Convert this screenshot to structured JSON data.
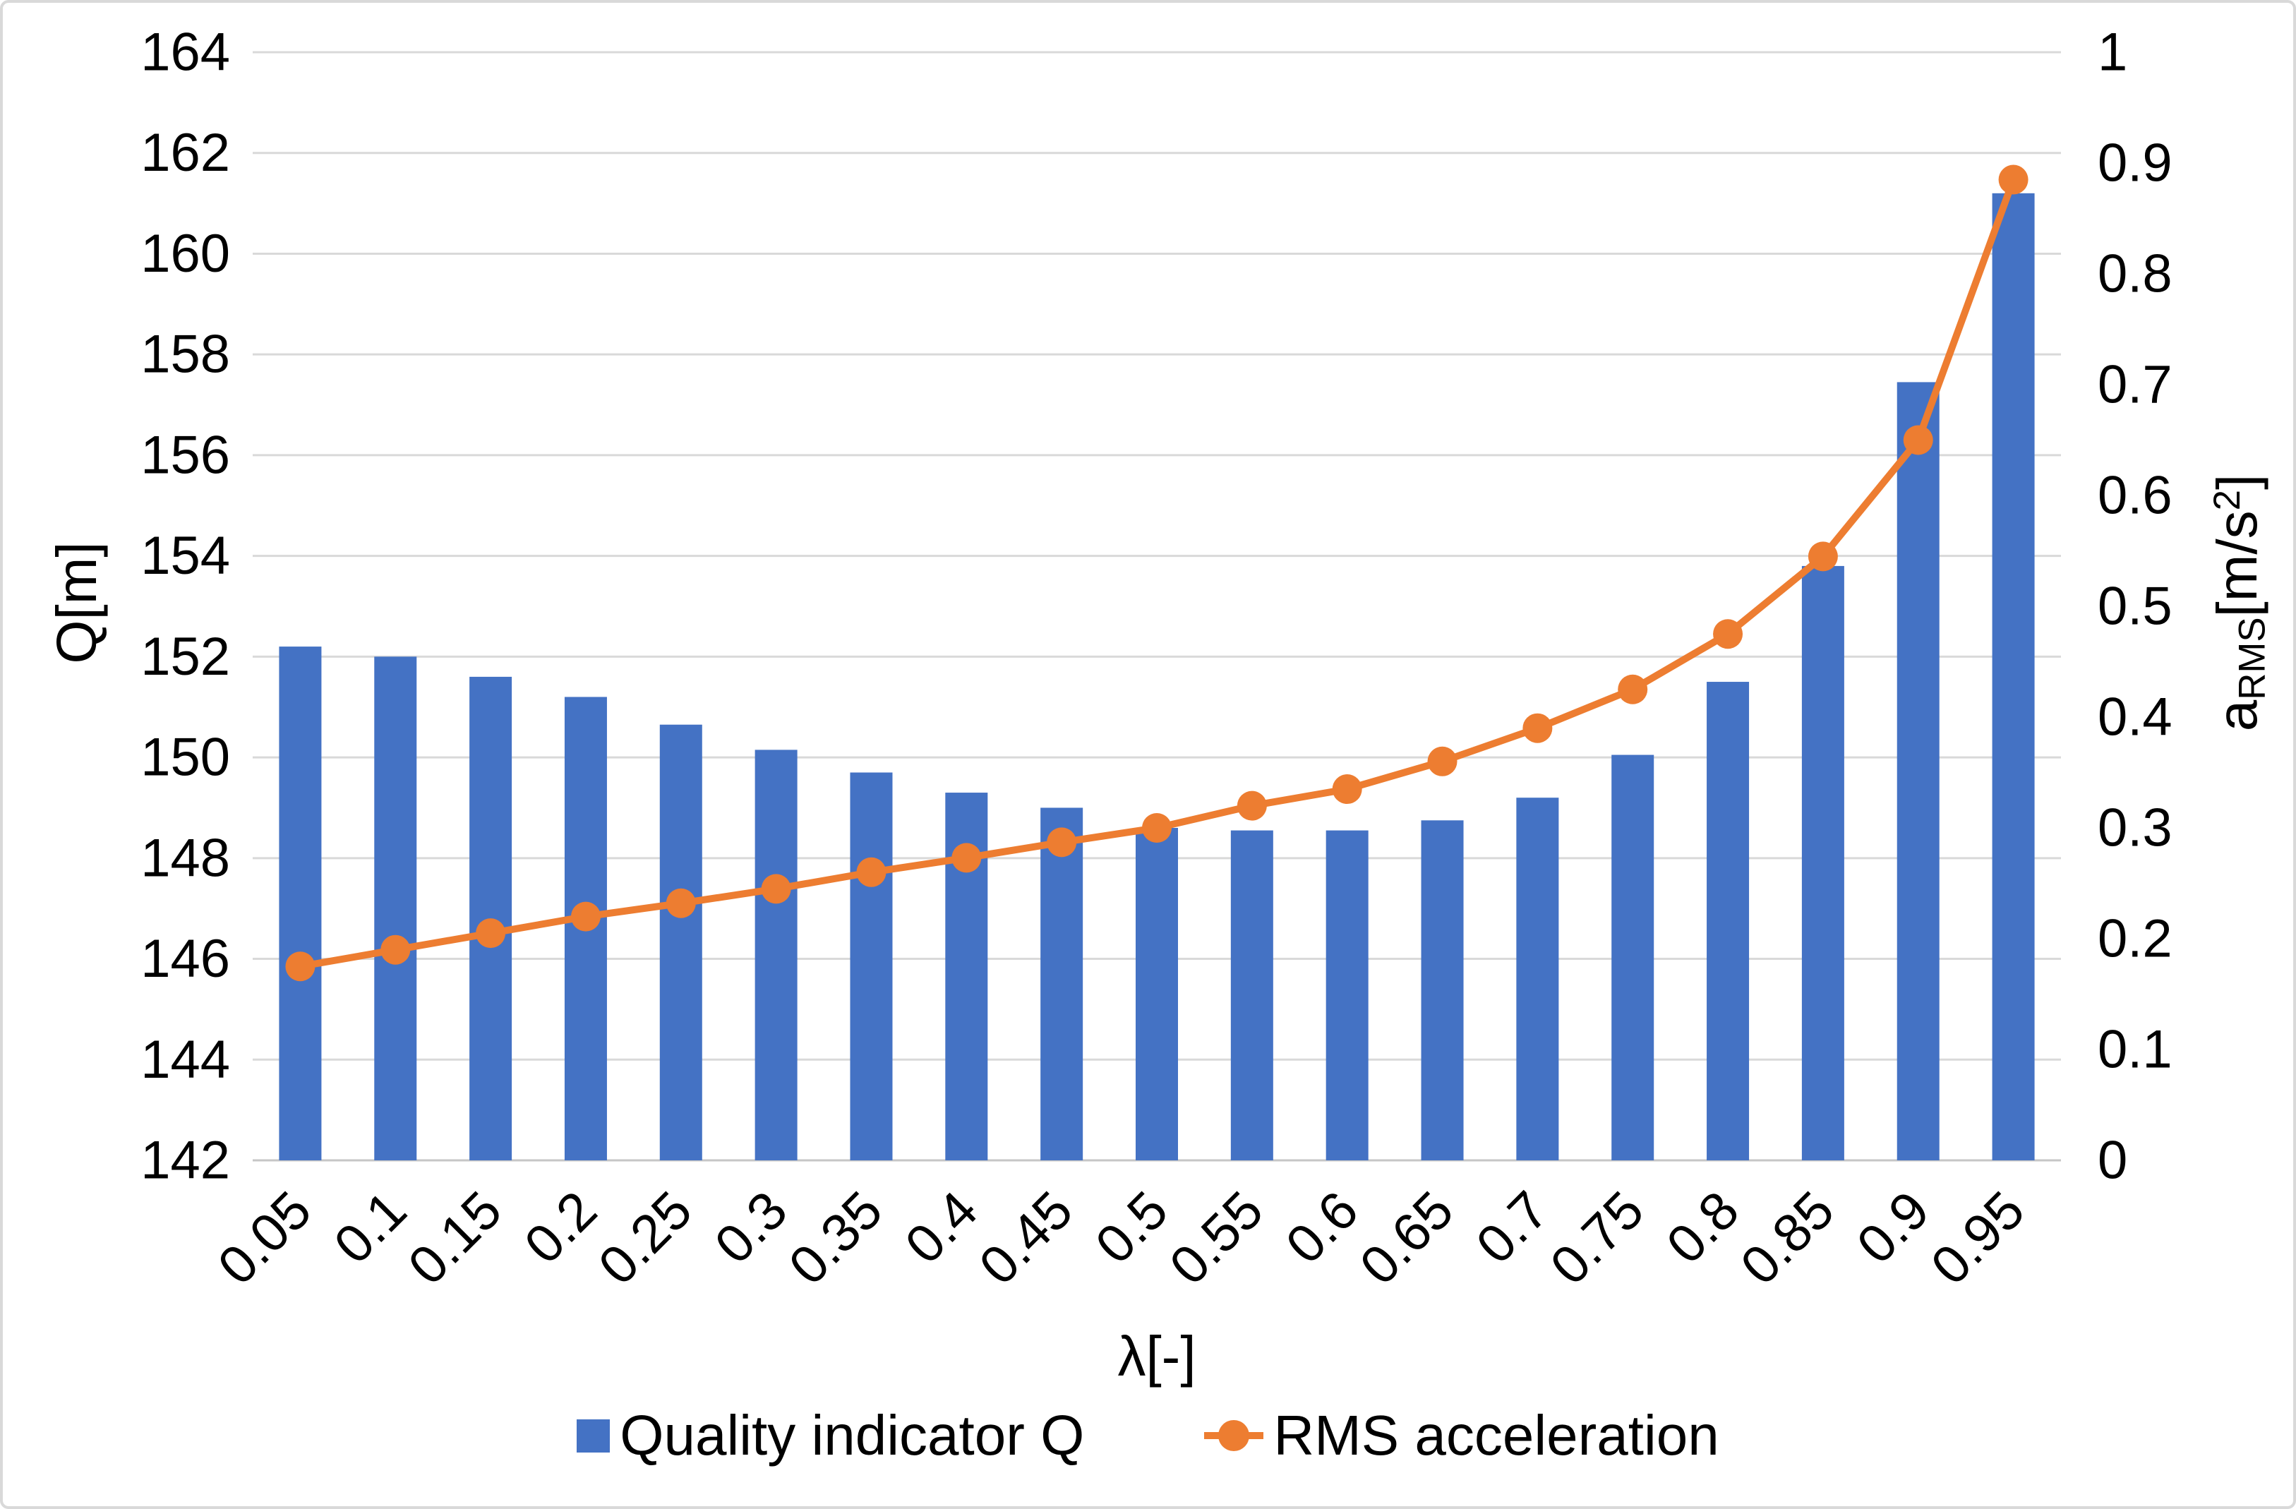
{
  "chart_data": {
    "type": "bar",
    "subtype": "combo-bar-line-dual-axis",
    "categories": [
      "0.05",
      "0.1",
      "0.15",
      "0.2",
      "0.25",
      "0.3",
      "0.35",
      "0.4",
      "0.45",
      "0.5",
      "0.55",
      "0.6",
      "0.65",
      "0.7",
      "0.75",
      "0.8",
      "0.85",
      "0.9",
      "0.95"
    ],
    "series": [
      {
        "name": "Quality indicator Q",
        "type": "bar",
        "axis": "left",
        "color": "#4472C4",
        "values": [
          152.2,
          152.0,
          151.6,
          151.2,
          150.65,
          150.15,
          149.7,
          149.3,
          149.0,
          148.6,
          148.55,
          148.55,
          148.75,
          149.2,
          150.05,
          151.5,
          153.8,
          157.45,
          161.2
        ]
      },
      {
        "name": "RMS acceleration",
        "type": "line",
        "axis": "right",
        "color": "#ED7D31",
        "values": [
          0.175,
          0.19,
          0.205,
          0.22,
          0.232,
          0.245,
          0.26,
          0.273,
          0.287,
          0.3,
          0.32,
          0.335,
          0.36,
          0.39,
          0.425,
          0.475,
          0.545,
          0.65,
          0.885
        ]
      }
    ],
    "xlabel": "λ[-]",
    "ylabel_left": "Q[m]",
    "ylabel_right_parts": {
      "base": "a",
      "sub": "RMS",
      "mid": "[m/s",
      "sup": "2",
      "end": "]"
    },
    "y_left": {
      "min": 142,
      "max": 164,
      "step": 2,
      "ticks": [
        "164",
        "162",
        "160",
        "158",
        "156",
        "154",
        "152",
        "150",
        "148",
        "146",
        "144",
        "142"
      ]
    },
    "y_right": {
      "min": 0,
      "max": 1,
      "step": 0.1,
      "ticks": [
        "1",
        "0.9",
        "0.8",
        "0.7",
        "0.6",
        "0.5",
        "0.4",
        "0.3",
        "0.2",
        "0.1",
        "0"
      ]
    },
    "grid": true,
    "legend_position": "bottom",
    "colors": {
      "grid": "#D9D9D9",
      "axis_line": "#C6C6C6",
      "text": "#000000",
      "background": "#FFFFFF",
      "border": "#D9D9D9"
    }
  }
}
